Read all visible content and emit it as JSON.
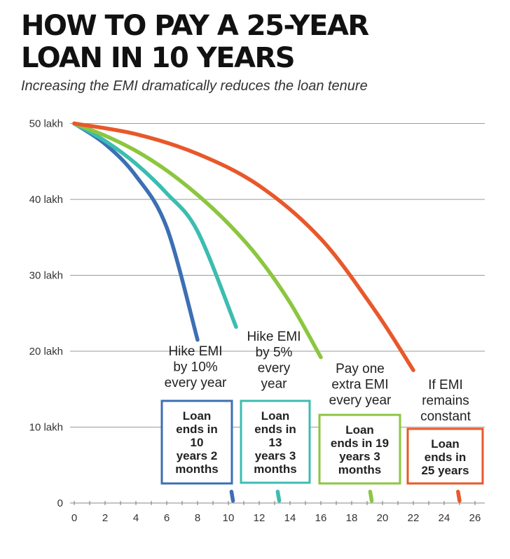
{
  "title_lines": [
    "HOW TO PAY A 25-YEAR",
    "LOAN IN 10 YEARS"
  ],
  "subtitle": "Increasing the EMI dramatically reduces the loan tenure",
  "colors": {
    "hike10": "#3c6fb4",
    "hike5": "#3bbdb0",
    "extra": "#8cc63f",
    "constant": "#e8582a",
    "grid": "#9a9a9a",
    "box_border_hike10": "#3c6fb4"
  },
  "chart_data": {
    "type": "line",
    "title": "HOW TO PAY A 25-YEAR LOAN IN 10 YEARS",
    "subtitle": "Increasing the EMI dramatically reduces the loan tenure",
    "xlabel": "",
    "ylabel": "",
    "xlim": [
      0,
      26
    ],
    "ylim": [
      0,
      50
    ],
    "x_ticks": [
      "0",
      "2",
      "4",
      "6",
      "8",
      "10",
      "12",
      "14",
      "16",
      "18",
      "20",
      "22",
      "24",
      "26"
    ],
    "y_ticks": [
      {
        "value": 0,
        "label": "0"
      },
      {
        "value": 10,
        "label": "10 lakh"
      },
      {
        "value": 20,
        "label": "20 lakh"
      },
      {
        "value": 30,
        "label": "30 lakh"
      },
      {
        "value": 40,
        "label": "40 lakh"
      },
      {
        "value": 50,
        "label": "50 lakh"
      }
    ],
    "grid": true,
    "series": [
      {
        "key": "hike10",
        "color": "#3c6fb4",
        "segments": [
          [
            [
              0,
              50
            ],
            [
              2,
              47.3
            ],
            [
              4,
              43.1
            ],
            [
              6,
              36.3
            ],
            [
              8,
              21.5
            ]
          ],
          [
            [
              10.2,
              1.5
            ],
            [
              10.3,
              0.3
            ]
          ]
        ],
        "note_lines": [
          "Hike EMI",
          "by 10%",
          "every year"
        ],
        "box_lines": [
          "Loan",
          "ends in",
          "10",
          "years 2",
          "months"
        ]
      },
      {
        "key": "hike5",
        "color": "#3bbdb0",
        "segments": [
          [
            [
              0,
              50
            ],
            [
              2,
              47.7
            ],
            [
              4,
              44.7
            ],
            [
              6,
              40.8
            ],
            [
              8,
              35.8
            ],
            [
              10.5,
              23.2
            ]
          ],
          [
            [
              13.2,
              1.5
            ],
            [
              13.3,
              0.3
            ]
          ]
        ],
        "note_lines": [
          "Hike  EMI",
          "by 5%",
          "every",
          "year"
        ],
        "box_lines": [
          "Loan",
          "ends in",
          "13",
          "years 3",
          "months"
        ]
      },
      {
        "key": "extra",
        "color": "#8cc63f",
        "segments": [
          [
            [
              0,
              50
            ],
            [
              2,
              48.4
            ],
            [
              4,
              46.4
            ],
            [
              6,
              43.8
            ],
            [
              8,
              40.6
            ],
            [
              10,
              36.8
            ],
            [
              12,
              32.2
            ],
            [
              14,
              26.4
            ],
            [
              16,
              19.2
            ]
          ],
          [
            [
              19.2,
              1.5
            ],
            [
              19.3,
              0.3
            ]
          ]
        ],
        "note_lines": [
          "Pay one",
          "extra EMI",
          "every year"
        ],
        "box_lines": [
          "Loan",
          "ends in 19",
          "years 3",
          "months"
        ]
      },
      {
        "key": "constant",
        "color": "#e8582a",
        "segments": [
          [
            [
              0,
              50
            ],
            [
              4,
              48.6
            ],
            [
              8,
              46
            ],
            [
              12,
              41.8
            ],
            [
              16,
              34.8
            ],
            [
              19.5,
              25.4
            ],
            [
              22,
              17.5
            ]
          ],
          [
            [
              24.9,
              1.5
            ],
            [
              25,
              0.3
            ]
          ]
        ],
        "note_lines": [
          "If EMI",
          "remains",
          "constant"
        ],
        "box_lines": [
          "Loan",
          "ends in",
          "25 years"
        ]
      }
    ]
  }
}
